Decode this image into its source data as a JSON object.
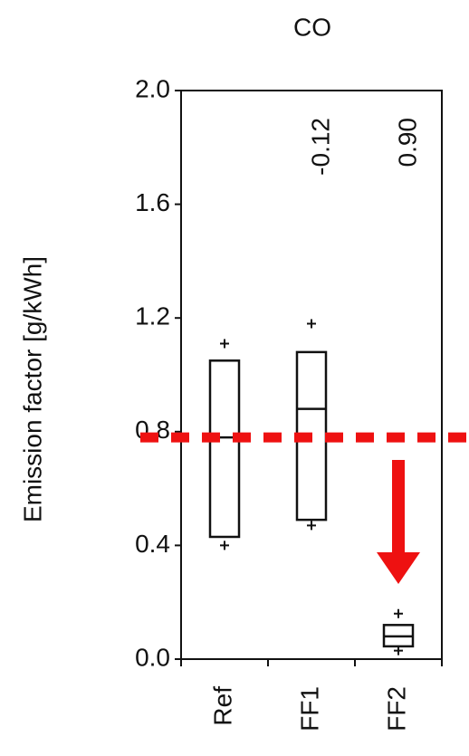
{
  "chart_data": {
    "type": "box",
    "title": "CO",
    "y_label": "Emission factor [g/kWh]",
    "categories": [
      "Ref",
      "FF1",
      "FF2"
    ],
    "boxes": [
      {
        "min": 0.4,
        "q1": 0.43,
        "median": 0.78,
        "q3": 1.05,
        "max": 1.11
      },
      {
        "min": 0.47,
        "q1": 0.49,
        "median": 0.88,
        "q3": 1.08,
        "max": 1.18
      },
      {
        "min": 0.03,
        "q1": 0.045,
        "median": 0.08,
        "q3": 0.12,
        "max": 0.16
      }
    ],
    "annotations": [
      null,
      "-0.12",
      "0.90"
    ],
    "reference_line": {
      "value": 0.78,
      "color": "#ee1111"
    },
    "color": "#111111",
    "ylim": [
      0,
      2.0
    ],
    "yticks": [
      {
        "value": 0,
        "label": "0.0"
      },
      {
        "value": 0.4,
        "label": "0.4"
      },
      {
        "value": 0.8,
        "label": "0.8"
      },
      {
        "value": 1.2,
        "label": "1.2"
      },
      {
        "value": 1.6,
        "label": "1.6"
      },
      {
        "value": 2.0,
        "label": "2.0"
      }
    ]
  }
}
